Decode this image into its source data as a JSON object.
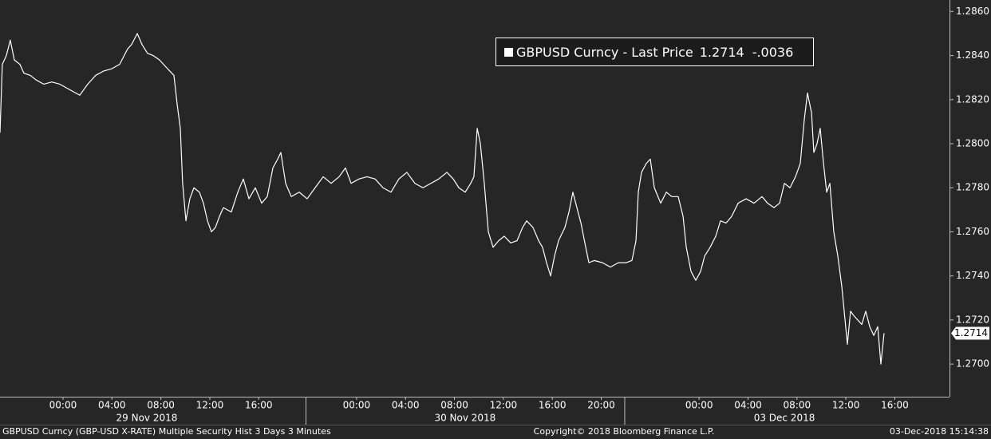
{
  "chart_data": {
    "type": "line",
    "legend": {
      "last": "1.2714",
      "change": "-.0036"
    },
    "series": [
      {
        "name": "GBPUSD Curncy - Last Price",
        "color": "#ffffff",
        "x": [
          -5.15,
          -4.96,
          -4.63,
          -4.31,
          -3.98,
          -3.52,
          -3.2,
          -2.67,
          -2.22,
          -1.57,
          -0.91,
          -0.26,
          0.39,
          1.04,
          1.37,
          2.02,
          2.67,
          3.33,
          3.98,
          4.63,
          5.28,
          5.61,
          6.07,
          6.46,
          6.91,
          7.37,
          7.89,
          8.55,
          9.07,
          9.33,
          9.59,
          9.78,
          10.05,
          10.37,
          10.7,
          11.15,
          11.48,
          11.81,
          12.13,
          12.46,
          12.79,
          13.11,
          13.76,
          14.29,
          14.74,
          15.2,
          15.72,
          16.24,
          16.7,
          17.16,
          17.55,
          17.81,
          18.2,
          18.66,
          19.31,
          19.96,
          20.61,
          21.27,
          21.92,
          22.57,
          23.09,
          23.55,
          24.2,
          24.85,
          25.51,
          26.16,
          26.81,
          27.46,
          28.11,
          28.77,
          29.42,
          30.07,
          30.72,
          31.38,
          31.9,
          32.36,
          32.88,
          33.33,
          33.59,
          33.86,
          34.12,
          34.44,
          34.77,
          35.16,
          35.62,
          36.07,
          36.6,
          37.12,
          37.57,
          37.9,
          38.42,
          38.88,
          39.2,
          39.53,
          39.86,
          40.18,
          40.51,
          41.03,
          41.36,
          41.68,
          42.01,
          42.34,
          42.66,
          42.99,
          43.44,
          44.1,
          44.75,
          45.4,
          46.05,
          46.51,
          46.84,
          47.03,
          47.29,
          47.68,
          48.01,
          48.34,
          48.86,
          49.32,
          49.77,
          50.29,
          50.69,
          50.95,
          51.34,
          51.73,
          52.12,
          52.45,
          52.9,
          53.36,
          53.75,
          54.21,
          54.66,
          55.19,
          55.84,
          56.49,
          57.14,
          57.6,
          58.12,
          58.58,
          58.97,
          59.43,
          59.88,
          60.27,
          60.6,
          60.86,
          61.19,
          61.38,
          61.64,
          61.9,
          62.17,
          62.43,
          62.69,
          63.01,
          63.34,
          63.67,
          63.93,
          64.12,
          64.38,
          64.64,
          64.97,
          65.3,
          65.62,
          65.95,
          66.28,
          66.6,
          66.86,
          67.12
        ],
        "values": [
          1.2805,
          1.2836,
          1.284,
          1.2847,
          1.2838,
          1.2836,
          1.2832,
          1.2831,
          1.2829,
          1.2827,
          1.2828,
          1.2827,
          1.2825,
          1.2823,
          1.2822,
          1.2827,
          1.2831,
          1.2833,
          1.2834,
          1.2836,
          1.2843,
          1.2845,
          1.285,
          1.2845,
          1.2841,
          1.284,
          1.2838,
          1.2834,
          1.2831,
          1.2818,
          1.2807,
          1.2782,
          1.2765,
          1.2775,
          1.278,
          1.2778,
          1.2773,
          1.2765,
          1.276,
          1.2762,
          1.2767,
          1.2771,
          1.2769,
          1.2778,
          1.2784,
          1.2775,
          1.278,
          1.2773,
          1.2776,
          1.2789,
          1.2793,
          1.2796,
          1.2782,
          1.2776,
          1.2778,
          1.2775,
          1.278,
          1.2785,
          1.2782,
          1.2785,
          1.2789,
          1.2782,
          1.2784,
          1.2785,
          1.2784,
          1.278,
          1.2778,
          1.2784,
          1.2787,
          1.2782,
          1.278,
          1.2782,
          1.2784,
          1.2787,
          1.2784,
          1.278,
          1.2778,
          1.2782,
          1.2785,
          1.2807,
          1.28,
          1.2782,
          1.276,
          1.2753,
          1.2756,
          1.2758,
          1.2755,
          1.2756,
          1.2762,
          1.2765,
          1.2762,
          1.2756,
          1.2753,
          1.2746,
          1.274,
          1.2749,
          1.2756,
          1.2762,
          1.2769,
          1.2778,
          1.2771,
          1.2764,
          1.2755,
          1.2746,
          1.2747,
          1.2746,
          1.2744,
          1.2746,
          1.2746,
          1.2747,
          1.2756,
          1.2778,
          1.2787,
          1.2791,
          1.2793,
          1.278,
          1.2773,
          1.2778,
          1.2776,
          1.2776,
          1.2767,
          1.2753,
          1.2742,
          1.2738,
          1.2742,
          1.2749,
          1.2753,
          1.2758,
          1.2765,
          1.2764,
          1.2767,
          1.2773,
          1.2775,
          1.2773,
          1.2776,
          1.2773,
          1.2771,
          1.2773,
          1.2782,
          1.278,
          1.2785,
          1.2791,
          1.2811,
          1.2823,
          1.2814,
          1.2796,
          1.28,
          1.2807,
          1.2791,
          1.2778,
          1.2782,
          1.276,
          1.2749,
          1.2735,
          1.272,
          1.2709,
          1.2724,
          1.2722,
          1.272,
          1.2718,
          1.2724,
          1.2717,
          1.2713,
          1.2717,
          1.27,
          1.2714
        ]
      }
    ],
    "xlim": [
      -5.15,
      72.47
    ],
    "xticks": [
      {
        "value": 0,
        "label": "00:00"
      },
      {
        "value": 4,
        "label": "04:00"
      },
      {
        "value": 8,
        "label": "08:00"
      },
      {
        "value": 12,
        "label": "12:00"
      },
      {
        "value": 16,
        "label": "16:00"
      },
      {
        "value": 24,
        "label": "00:00"
      },
      {
        "value": 28,
        "label": "04:00"
      },
      {
        "value": 32,
        "label": "08:00"
      },
      {
        "value": 36,
        "label": "12:00"
      },
      {
        "value": 40,
        "label": "16:00"
      },
      {
        "value": 44,
        "label": "20:00"
      },
      {
        "value": 52,
        "label": "00:00"
      },
      {
        "value": 56,
        "label": "04:00"
      },
      {
        "value": 60,
        "label": "08:00"
      },
      {
        "value": 64,
        "label": "12:00"
      },
      {
        "value": 68,
        "label": "16:00"
      }
    ],
    "xdays": [
      {
        "value": 6.85,
        "label": "29 Nov 2018"
      },
      {
        "value": 32.87,
        "label": "30 Nov 2018"
      },
      {
        "value": 58.97,
        "label": "03 Dec 2018"
      }
    ],
    "ylim": [
      1.26852,
      1.28652
    ],
    "yticks": [
      {
        "value": 1.27,
        "label": "1.2700"
      },
      {
        "value": 1.272,
        "label": "1.2720"
      },
      {
        "value": 1.274,
        "label": "1.2740"
      },
      {
        "value": 1.276,
        "label": "1.2760"
      },
      {
        "value": 1.278,
        "label": "1.2780"
      },
      {
        "value": 1.28,
        "label": "1.2800"
      },
      {
        "value": 1.282,
        "label": "1.2820"
      },
      {
        "value": 1.284,
        "label": "1.2840"
      },
      {
        "value": 1.286,
        "label": "1.2860"
      }
    ]
  },
  "footer": {
    "left": "GBPUSD Curncy (GBP-USD X-RATE) Multiple Security Hist  3 Days 3 Minutes",
    "center": "Copyright© 2018 Bloomberg Finance L.P.",
    "right": "03-Dec-2018 15:14:38"
  }
}
